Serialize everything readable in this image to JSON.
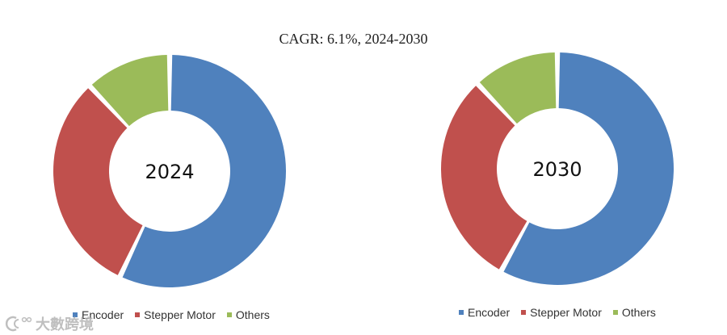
{
  "chart_data": [
    {
      "type": "pie",
      "subtype": "donut",
      "center_label": "2024",
      "categories": [
        "Encoder",
        "Stepper Motor",
        "Others"
      ],
      "values": [
        57,
        31,
        12
      ],
      "colors": [
        "#4f81bd",
        "#c0504d",
        "#9bbb59"
      ]
    },
    {
      "type": "pie",
      "subtype": "donut",
      "center_label": "2030",
      "categories": [
        "Encoder",
        "Stepper Motor",
        "Others"
      ],
      "values": [
        58,
        30,
        12
      ],
      "colors": [
        "#4f81bd",
        "#c0504d",
        "#9bbb59"
      ]
    }
  ],
  "title": "CAGR:   6.1%, 2024-2030",
  "legend": [
    {
      "label": "Encoder",
      "color": "#4f81bd"
    },
    {
      "label": "Stepper Motor",
      "color": "#c0504d"
    },
    {
      "label": "Others",
      "color": "#9bbb59"
    }
  ],
  "watermark": {
    "text": "大數跨境",
    "icon": "logo-icon"
  }
}
